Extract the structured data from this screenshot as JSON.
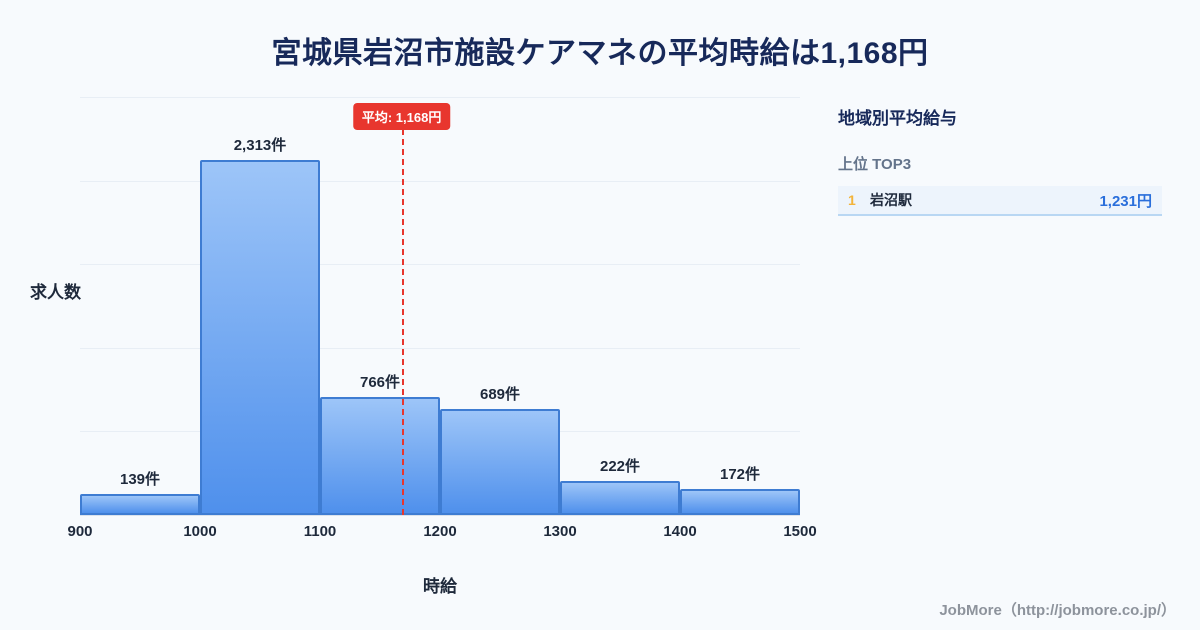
{
  "page": {
    "title": "宮城県岩沼市施設ケアマネの平均時給は1,168円",
    "footer": "JobMore（http://jobmore.co.jp/）"
  },
  "chart_data": {
    "type": "bar",
    "title": "宮城県岩沼市施設ケアマネの平均時給は1,168円",
    "xlabel": "時給",
    "ylabel": "求人数",
    "x_range": [
      900,
      1500
    ],
    "x_ticks": [
      "900",
      "1000",
      "1100",
      "1200",
      "1300",
      "1400",
      "1500"
    ],
    "grid": "horizontal",
    "bins": [
      {
        "range": [
          900,
          1000
        ],
        "count": 139,
        "label": "139件"
      },
      {
        "range": [
          1000,
          1100
        ],
        "count": 2313,
        "label": "2,313件"
      },
      {
        "range": [
          1100,
          1200
        ],
        "count": 766,
        "label": "766件"
      },
      {
        "range": [
          1200,
          1300
        ],
        "count": 689,
        "label": "689件"
      },
      {
        "range": [
          1300,
          1400
        ],
        "count": 222,
        "label": "222件"
      },
      {
        "range": [
          1400,
          1500
        ],
        "count": 172,
        "label": "172件"
      }
    ],
    "average": {
      "value": 1168,
      "label": "平均: 1,168円"
    }
  },
  "sidebar": {
    "heading": "地域別平均給与",
    "subheading": "上位 TOP3",
    "items": [
      {
        "rank": "1",
        "name": "岩沼駅",
        "value": "1,231円"
      }
    ]
  },
  "colors": {
    "page_bg": "#f7fafd",
    "title_navy": "#17295a",
    "text_dark": "#1e293b",
    "muted": "#64748b",
    "grid": "#e8eef5",
    "bar_fill_top": "#9dc5f8",
    "bar_fill_bottom": "#4f90ec",
    "bar_border": "#3e7cd2",
    "accent_red": "#e8362e",
    "rank_gold": "#f3b43a",
    "value_blue": "#2a6fdb",
    "row_bg": "#edf4fc",
    "row_border": "#b9d7f3",
    "footer_gray": "#8d939c"
  }
}
